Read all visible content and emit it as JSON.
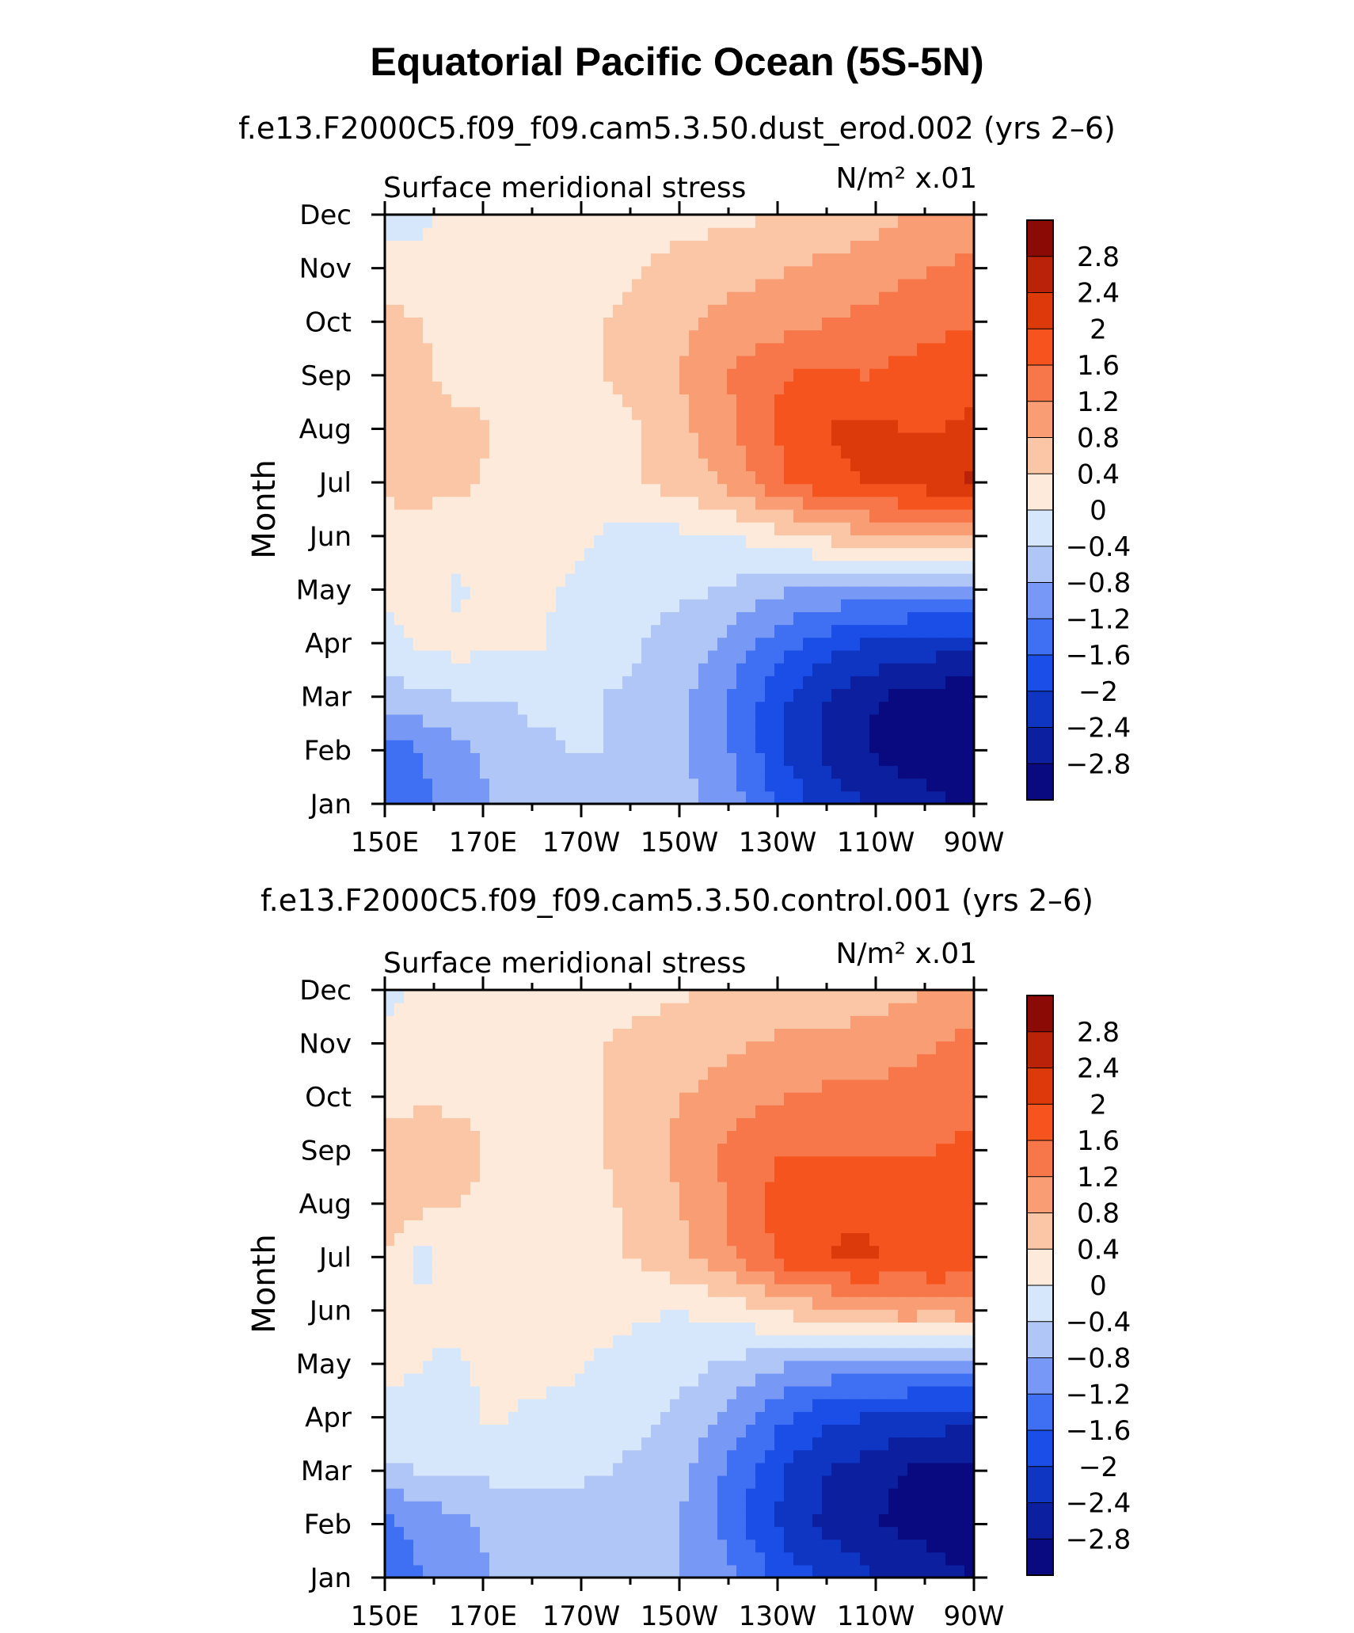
{
  "title": "Equatorial Pacific Ocean (5S-5N)",
  "colors": {
    "levels_ramp": [
      "#0a0a80",
      "#0c1f9e",
      "#0f35c3",
      "#1a4ee6",
      "#3f6ff2",
      "#7898f5",
      "#b0c6f7",
      "#d7e7fb",
      "#fdeadb",
      "#fbc6a6",
      "#f99d75",
      "#f7774a",
      "#f5541f",
      "#dc3a0b",
      "#ba2309",
      "#8a0a06"
    ]
  },
  "chart_data": [
    {
      "type": "heatmap",
      "subtitle": "f.e13.F2000C5.f09_f09.cam5.3.50.dust_erod.002 (yrs 2–6)",
      "left_label": "Surface meridional stress",
      "right_label": "N/m² x.01",
      "ylabel": "Month",
      "x_ticks": [
        "150E",
        "170E",
        "170W",
        "150W",
        "130W",
        "110W",
        "90W"
      ],
      "y_ticks": [
        "Jan",
        "Feb",
        "Mar",
        "Apr",
        "May",
        "Jun",
        "Jul",
        "Aug",
        "Sep",
        "Oct",
        "Nov",
        "Dec"
      ],
      "colorbar_labels": [
        "2.8",
        "2.4",
        "2",
        "1.6",
        "1.2",
        "0.8",
        "0.4",
        "0",
        "−0.4",
        "−0.8",
        "−1.2",
        "−1.6",
        "−2",
        "−2.4",
        "−2.8"
      ],
      "grid": [
        [
          -1.6,
          -1.3,
          -0.9,
          -0.8,
          -0.6,
          -0.5,
          -0.5,
          -0.6,
          -0.7,
          -0.9,
          -1.3,
          -1.8,
          -2.2,
          -2.4,
          -2.5,
          -2.7,
          -2.9
        ],
        [
          -1.5,
          -1.2,
          -0.9,
          -0.7,
          -0.5,
          -0.4,
          -0.4,
          -0.5,
          -0.7,
          -1.0,
          -1.5,
          -2.1,
          -2.5,
          -2.8,
          -3.0,
          -3.1,
          -3.3
        ],
        [
          -0.6,
          -0.5,
          -0.4,
          -0.4,
          -0.3,
          -0.3,
          -0.4,
          -0.5,
          -0.7,
          -1.0,
          -1.5,
          -2.0,
          -2.4,
          -2.7,
          -2.9,
          -3.0,
          -3.1
        ],
        [
          -0.2,
          0.1,
          0.15,
          0.1,
          0.05,
          -0.1,
          -0.2,
          -0.4,
          -0.6,
          -0.8,
          -1.2,
          -1.5,
          -1.8,
          -2.0,
          -2.1,
          -2.2,
          -2.3
        ],
        [
          0.1,
          0.2,
          -0.1,
          0.2,
          0.1,
          -0.05,
          -0.1,
          -0.2,
          -0.3,
          -0.4,
          -0.6,
          -0.8,
          -0.9,
          -1.0,
          -1.0,
          -1.1,
          -0.9
        ],
        [
          0.2,
          0.3,
          0.2,
          0.3,
          0.2,
          0.1,
          -0.05,
          -0.1,
          -0.1,
          -0.05,
          0.1,
          0.3,
          0.5,
          0.7,
          0.8,
          0.9,
          1.0
        ],
        [
          0.5,
          0.5,
          0.45,
          0.35,
          0.3,
          0.3,
          0.3,
          0.4,
          0.6,
          0.8,
          1.2,
          1.6,
          1.9,
          2.0,
          2.1,
          2.2,
          2.5
        ],
        [
          0.7,
          0.5,
          0.5,
          0.4,
          0.3,
          0.3,
          0.3,
          0.4,
          0.7,
          1.0,
          1.4,
          1.8,
          2.0,
          2.1,
          2.0,
          2.0,
          2.1
        ],
        [
          0.6,
          0.45,
          0.3,
          0.25,
          0.3,
          0.35,
          0.4,
          0.5,
          0.8,
          1.1,
          1.4,
          1.6,
          1.7,
          1.6,
          1.7,
          1.8,
          1.8
        ],
        [
          0.5,
          0.4,
          0.3,
          0.25,
          0.3,
          0.3,
          0.4,
          0.5,
          0.7,
          0.9,
          1.0,
          1.1,
          1.2,
          1.3,
          1.4,
          1.5,
          1.6
        ],
        [
          0.2,
          0.15,
          0.1,
          0.2,
          0.25,
          0.25,
          0.3,
          0.4,
          0.5,
          0.6,
          0.7,
          0.8,
          0.9,
          1.0,
          1.1,
          1.2,
          1.3
        ],
        [
          -0.2,
          -0.1,
          0.1,
          0.15,
          0.2,
          0.2,
          0.2,
          0.25,
          0.3,
          0.3,
          0.35,
          0.4,
          0.5,
          0.6,
          0.8,
          0.9,
          1.0
        ]
      ]
    },
    {
      "type": "heatmap",
      "subtitle": "f.e13.F2000C5.f09_f09.cam5.3.50.control.001 (yrs 2–6)",
      "left_label": "Surface meridional stress",
      "right_label": "N/m² x.01",
      "ylabel": "Month",
      "x_ticks": [
        "150E",
        "170E",
        "170W",
        "150W",
        "130W",
        "110W",
        "90W"
      ],
      "y_ticks": [
        "Jan",
        "Feb",
        "Mar",
        "Apr",
        "May",
        "Jun",
        "Jul",
        "Aug",
        "Sep",
        "Oct",
        "Nov",
        "Dec"
      ],
      "colorbar_labels": [
        "2.8",
        "2.4",
        "2",
        "1.6",
        "1.2",
        "0.8",
        "0.4",
        "0",
        "−0.4",
        "−0.8",
        "−1.2",
        "−1.6",
        "−2",
        "−2.4",
        "−2.8"
      ],
      "grid": [
        [
          -1.6,
          -1.2,
          -0.9,
          -0.8,
          -0.7,
          -0.6,
          -0.6,
          -0.7,
          -0.8,
          -1.0,
          -1.4,
          -1.8,
          -2.1,
          -2.3,
          -2.5,
          -2.6,
          -2.8
        ],
        [
          -1.3,
          -1.1,
          -0.9,
          -0.7,
          -0.6,
          -0.5,
          -0.5,
          -0.6,
          -0.8,
          -1.2,
          -1.7,
          -2.2,
          -2.5,
          -2.7,
          -2.9,
          -3.0,
          -3.2
        ],
        [
          -0.5,
          -0.4,
          -0.35,
          -0.3,
          -0.3,
          -0.35,
          -0.4,
          -0.5,
          -0.7,
          -1.1,
          -1.6,
          -2.1,
          -2.4,
          -2.6,
          -2.8,
          -2.9,
          -3.0
        ],
        [
          -0.1,
          -0.1,
          -0.2,
          0.1,
          -0.1,
          -0.1,
          -0.2,
          -0.3,
          -0.5,
          -0.8,
          -1.2,
          -1.6,
          -1.9,
          -2.0,
          -2.1,
          -2.2,
          -2.3
        ],
        [
          0.1,
          0.0,
          -0.1,
          0.2,
          0.15,
          0.05,
          -0.05,
          -0.15,
          -0.25,
          -0.4,
          -0.6,
          -0.8,
          -0.9,
          -1.0,
          -1.0,
          -1.1,
          -1.0
        ],
        [
          0.2,
          0.1,
          0.2,
          0.3,
          0.25,
          0.2,
          0.1,
          0.05,
          0.0,
          0.1,
          0.3,
          0.5,
          0.7,
          0.9,
          1.0,
          1.0,
          1.0
        ],
        [
          0.4,
          -0.2,
          0.3,
          0.3,
          0.3,
          0.3,
          0.35,
          0.45,
          0.7,
          1.0,
          1.4,
          1.8,
          2.0,
          2.1,
          1.9,
          2.0,
          1.9
        ],
        [
          0.8,
          0.5,
          0.4,
          0.3,
          0.3,
          0.3,
          0.35,
          0.5,
          0.8,
          1.1,
          1.5,
          1.8,
          1.9,
          1.9,
          1.8,
          1.8,
          2.0
        ],
        [
          0.5,
          0.6,
          0.6,
          0.3,
          0.3,
          0.3,
          0.4,
          0.6,
          0.9,
          1.2,
          1.5,
          1.6,
          1.6,
          1.6,
          1.6,
          1.6,
          1.7
        ],
        [
          0.3,
          0.35,
          0.3,
          0.25,
          0.3,
          0.3,
          0.4,
          0.6,
          0.8,
          0.9,
          1.1,
          1.2,
          1.3,
          1.3,
          1.3,
          1.3,
          1.5
        ],
        [
          0.1,
          0.3,
          0.2,
          0.2,
          0.25,
          0.25,
          0.4,
          0.5,
          0.6,
          0.7,
          0.8,
          0.9,
          0.9,
          1.0,
          1.1,
          1.2,
          1.3
        ],
        [
          -0.2,
          0.1,
          0.15,
          0.2,
          0.2,
          0.25,
          0.3,
          0.3,
          0.35,
          0.4,
          0.4,
          0.5,
          0.5,
          0.6,
          0.7,
          0.8,
          1.0
        ]
      ]
    }
  ]
}
